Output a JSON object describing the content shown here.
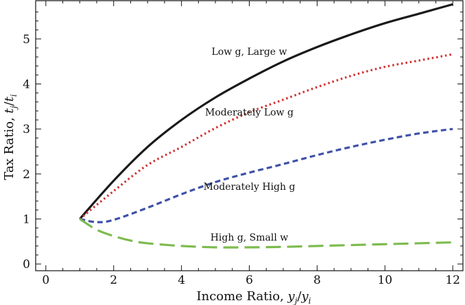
{
  "chart_data": {
    "type": "line",
    "xlabel_parts": {
      "prefix": "Income Ratio, ",
      "num": "y",
      "num_sub": "j",
      "den": "y",
      "den_sub": "i"
    },
    "ylabel_parts": {
      "prefix": "Tax Ratio, ",
      "num": "t",
      "num_sub": "j",
      "den": "t",
      "den_sub": "i"
    },
    "xlim": [
      -0.3,
      12.3
    ],
    "ylim": [
      -0.15,
      5.85
    ],
    "xticks": [
      0,
      2,
      4,
      6,
      8,
      10,
      12
    ],
    "yticks": [
      0,
      1,
      2,
      3,
      4,
      5
    ],
    "grid": false,
    "legend": "none",
    "series": [
      {
        "name": "Low g, Large w",
        "color": "#1a1a1a",
        "style": "solid",
        "x": [
          1,
          2,
          3,
          4,
          5,
          6,
          7,
          8,
          9,
          10,
          11,
          12
        ],
        "y": [
          1.0,
          1.85,
          2.6,
          3.2,
          3.7,
          4.12,
          4.5,
          4.82,
          5.1,
          5.35,
          5.56,
          5.77
        ]
      },
      {
        "name": "Moderately Low g",
        "color": "#d0322f",
        "style": "dotted",
        "x": [
          1,
          2,
          3,
          4,
          5,
          6,
          7,
          8,
          9,
          10,
          11,
          12
        ],
        "y": [
          1.0,
          1.62,
          2.2,
          2.6,
          3.02,
          3.37,
          3.65,
          3.93,
          4.18,
          4.38,
          4.52,
          4.66
        ]
      },
      {
        "name": "Moderately High g",
        "color": "#3f51a8",
        "style": "dashed",
        "x": [
          1,
          1.5,
          2,
          3,
          4,
          5,
          6,
          7,
          8,
          9,
          10,
          11,
          12
        ],
        "y": [
          1.0,
          0.93,
          0.98,
          1.25,
          1.55,
          1.82,
          2.03,
          2.22,
          2.42,
          2.6,
          2.76,
          2.9,
          3.0
        ]
      },
      {
        "name": "High g, Small w",
        "color": "#7dbb4e",
        "style": "longdash",
        "x": [
          1,
          1.5,
          2,
          2.5,
          3,
          4,
          5,
          6,
          7,
          8,
          9,
          10,
          11,
          12
        ],
        "y": [
          1.0,
          0.76,
          0.62,
          0.52,
          0.46,
          0.4,
          0.37,
          0.37,
          0.38,
          0.4,
          0.42,
          0.44,
          0.46,
          0.48
        ]
      }
    ],
    "annotations": [
      {
        "text": "Low g, Large w",
        "x": 6.0,
        "y": 4.65
      },
      {
        "text": "Moderately Low g",
        "x": 6.0,
        "y": 3.3
      },
      {
        "text": "Moderately High g",
        "x": 6.0,
        "y": 1.65
      },
      {
        "text": "High g, Small w",
        "x": 6.0,
        "y": 0.52
      }
    ]
  }
}
